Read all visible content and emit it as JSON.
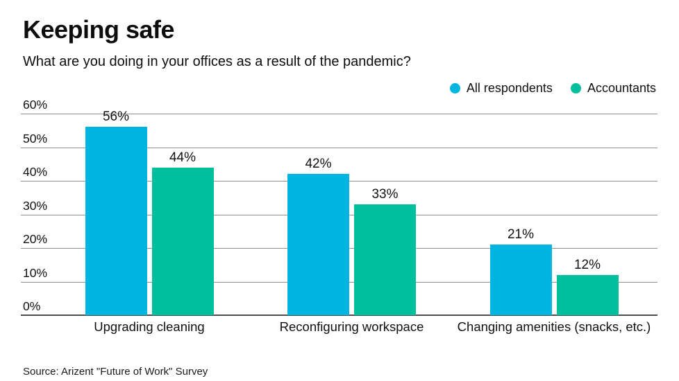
{
  "header": {
    "title": "Keeping safe",
    "subtitle": "What are you doing in your offices as a result of the pandemic?"
  },
  "footer": {
    "source": "Source: Arizent \"Future of Work\" Survey"
  },
  "chart_data": {
    "type": "bar",
    "title": "Keeping safe",
    "subtitle": "What are you doing in your offices as a result of the pandemic?",
    "categories": [
      "Upgrading cleaning",
      "Reconfiguring workspace",
      "Changing amenities (snacks, etc.)"
    ],
    "series": [
      {
        "name": "All respondents",
        "color": "#00b5e0",
        "values": [
          56,
          42,
          21
        ]
      },
      {
        "name": "Accountants",
        "color": "#00bf9c",
        "values": [
          44,
          33,
          12
        ]
      }
    ],
    "value_suffix": "%",
    "xlabel": "",
    "ylabel": "",
    "ylim": [
      0,
      60
    ],
    "ytick_step": 10,
    "yticks": [
      "0%",
      "10%",
      "20%",
      "30%",
      "40%",
      "50%",
      "60%"
    ],
    "grid": true,
    "legend_position": "top-right",
    "source": "Source: Arizent \"Future of Work\" Survey"
  },
  "colors": {
    "all_respondents": "#00b5e0",
    "accountants": "#00bf9c",
    "gridline": "#8f8f8f",
    "axis": "#4d4d4d",
    "text": "#111111",
    "background": "#ffffff"
  }
}
